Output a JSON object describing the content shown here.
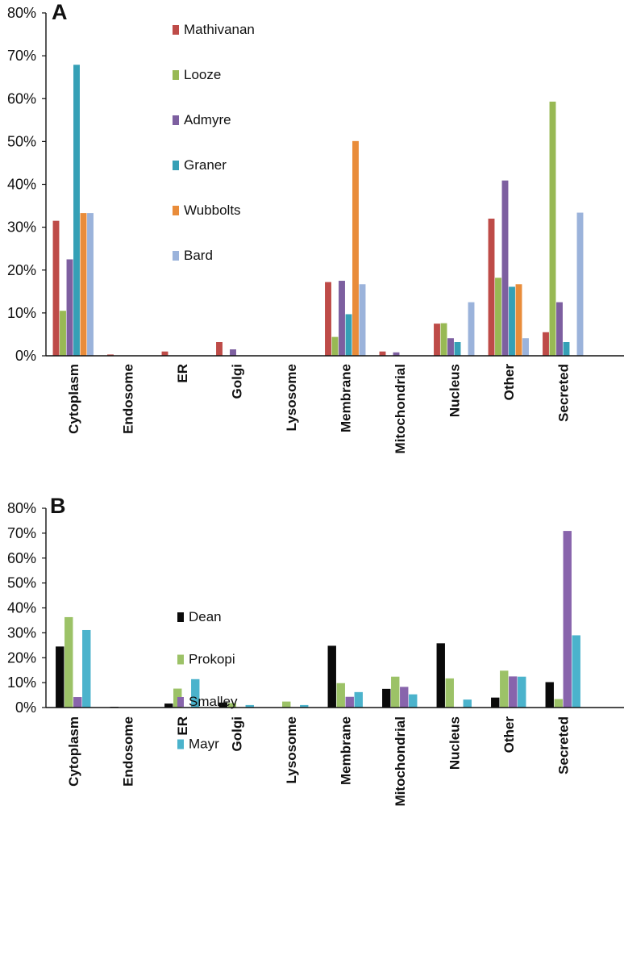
{
  "chart_data": [
    {
      "type": "bar",
      "panel_label": "A",
      "categories": [
        "Cytoplasm",
        "Endosome",
        "ER",
        "Golgi",
        "Lysosome",
        "Membrane",
        "Mitochondrial",
        "Nucleus",
        "Other",
        "Secreted"
      ],
      "yticks": [
        "0%",
        "10%",
        "20%",
        "30%",
        "40%",
        "50%",
        "60%",
        "70%",
        "80%"
      ],
      "ylim": [
        0,
        80
      ],
      "legend_position": "upper-left-inside",
      "series": [
        {
          "name": "Mathivanan",
          "color": "#be4b48",
          "values": [
            31.5,
            0.3,
            1.0,
            3.2,
            0,
            17.2,
            1.0,
            7.5,
            32.0,
            5.5
          ]
        },
        {
          "name": "Looze",
          "color": "#98b954",
          "values": [
            10.5,
            0,
            0,
            0,
            0,
            4.4,
            0,
            7.6,
            18.2,
            59.3
          ]
        },
        {
          "name": "Admyre",
          "color": "#7d5fa0",
          "values": [
            22.5,
            0,
            0,
            1.5,
            0,
            17.5,
            0.8,
            4.1,
            40.9,
            12.5
          ]
        },
        {
          "name": "Graner",
          "color": "#35a0b6",
          "values": [
            67.9,
            0,
            0,
            0,
            0,
            9.7,
            0,
            3.2,
            16.1,
            3.2
          ]
        },
        {
          "name": "Wubbolts",
          "color": "#e98c3a",
          "values": [
            33.3,
            0,
            0,
            0,
            0,
            50.1,
            0,
            0,
            16.7,
            0
          ]
        },
        {
          "name": "Bard",
          "color": "#9bb3db",
          "values": [
            33.3,
            0,
            0,
            0,
            0,
            16.7,
            0,
            12.5,
            4.1,
            33.4
          ]
        }
      ]
    },
    {
      "type": "bar",
      "panel_label": "B",
      "categories": [
        "Cytoplasm",
        "Endosome",
        "ER",
        "Golgi",
        "Lysosome",
        "Membrane",
        "Mitochondrial",
        "Nucleus",
        "Other",
        "Secreted"
      ],
      "yticks": [
        "0%",
        "10%",
        "20%",
        "30%",
        "40%",
        "50%",
        "60%",
        "70%",
        "80%"
      ],
      "ylim": [
        0,
        80
      ],
      "legend_position": "middle-left-inside",
      "series": [
        {
          "name": "Dean",
          "color": "#0a0a0a",
          "values": [
            24.5,
            0.3,
            1.6,
            2.0,
            0,
            24.8,
            7.5,
            25.8,
            4.0,
            10.2
          ]
        },
        {
          "name": "Prokopi",
          "color": "#9cc267",
          "values": [
            36.3,
            0.1,
            7.6,
            1.8,
            2.4,
            9.8,
            12.4,
            11.7,
            14.8,
            3.4
          ]
        },
        {
          "name": "Smalley",
          "color": "#8864ac",
          "values": [
            4.2,
            0,
            0,
            0,
            0,
            4.3,
            8.3,
            0,
            12.5,
            70.9
          ]
        },
        {
          "name": "Mayr",
          "color": "#4bb3cc",
          "values": [
            31.1,
            0,
            11.4,
            1.0,
            1.0,
            6.2,
            5.3,
            3.2,
            12.4,
            29.0
          ]
        }
      ]
    }
  ]
}
